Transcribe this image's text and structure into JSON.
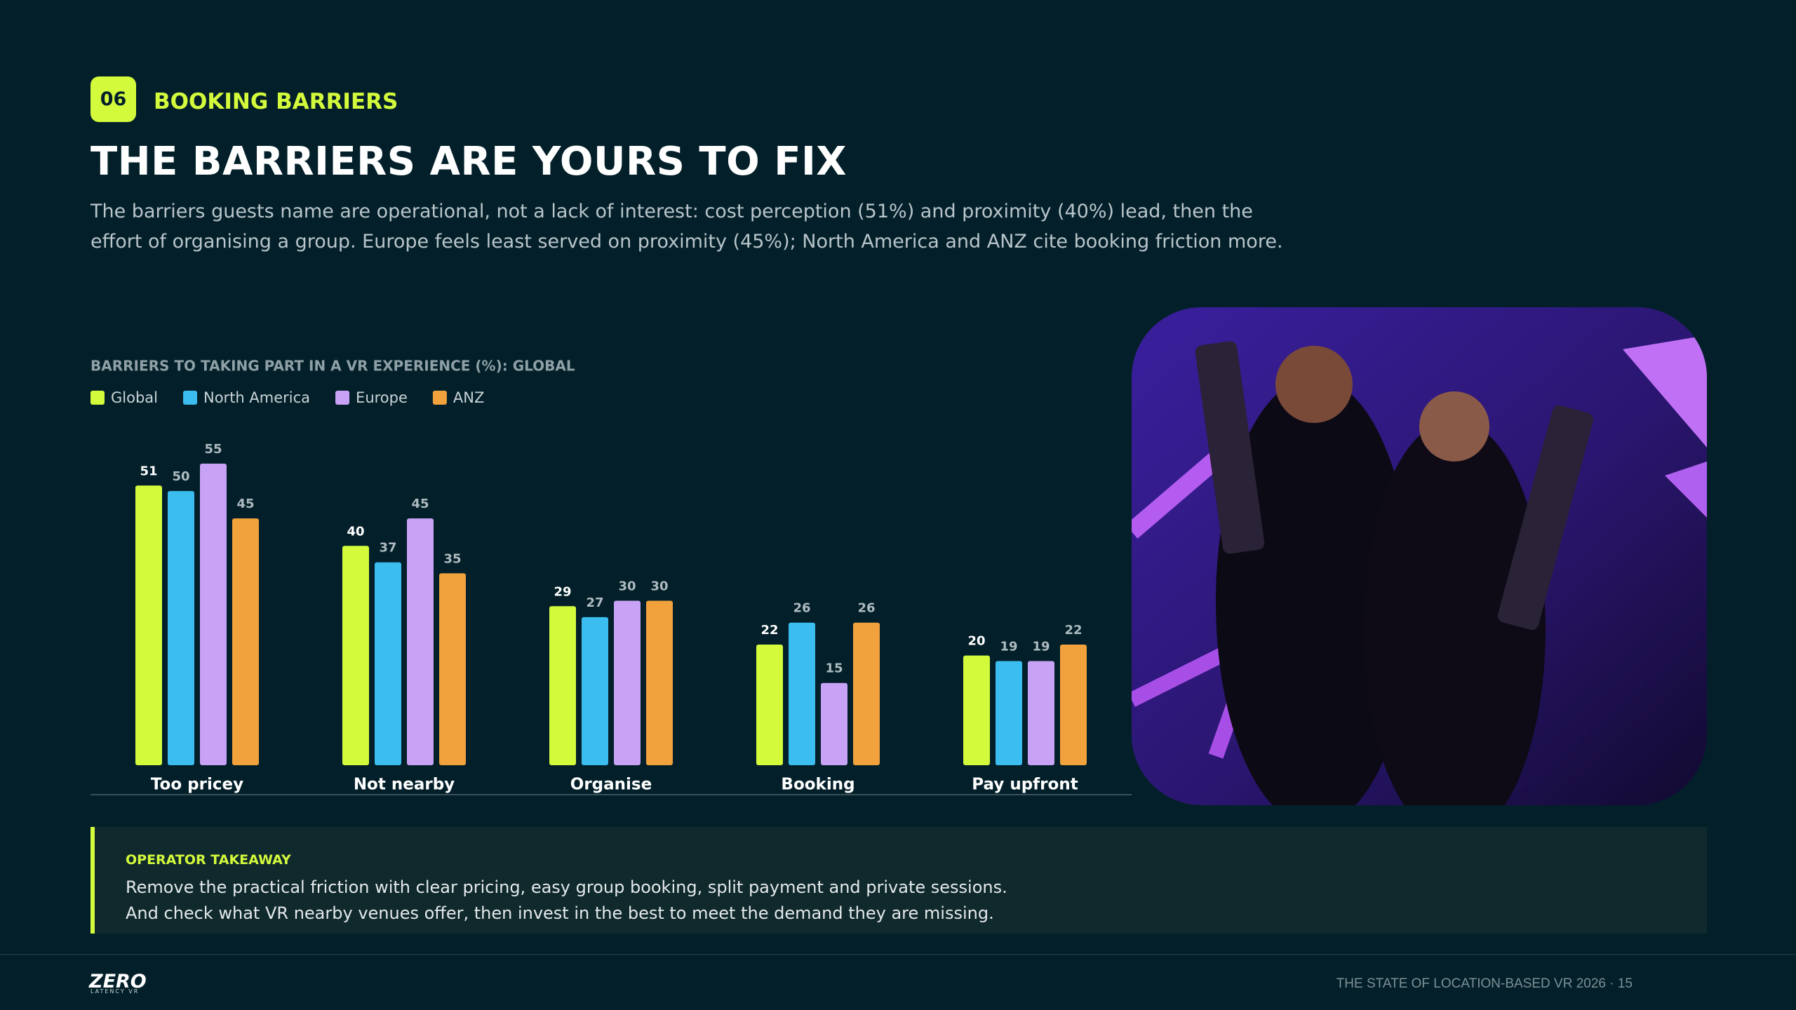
{
  "header": {
    "badge": "06",
    "section": "BOOKING BARRIERS",
    "title": "THE BARRIERS ARE YOURS TO FIX",
    "description": "The barriers guests name are operational, not a lack of interest: cost perception (51%) and proximity (40%) lead, then the effort of organising a group. Europe feels least served on proximity (45%); North America and ANZ cite booking friction more."
  },
  "chart_data": {
    "type": "bar",
    "title": "BARRIERS TO TAKING PART IN A VR EXPERIENCE (%): GLOBAL",
    "categories": [
      "Too pricey",
      "Not nearby",
      "Organise",
      "Booking",
      "Pay upfront"
    ],
    "series": [
      {
        "name": "Global",
        "color": "#d4fa3c",
        "values": [
          51,
          40,
          29,
          22,
          20
        ]
      },
      {
        "name": "North America",
        "color": "#3bbdf0",
        "values": [
          50,
          37,
          27,
          26,
          19
        ]
      },
      {
        "name": "Europe",
        "color": "#c8a2f5",
        "values": [
          55,
          45,
          30,
          15,
          19
        ]
      },
      {
        "name": "ANZ",
        "color": "#f2a23c",
        "values": [
          45,
          35,
          30,
          26,
          22
        ]
      }
    ],
    "ylim": [
      0,
      55
    ]
  },
  "takeaway": {
    "label": "OPERATOR TAKEAWAY",
    "lines": [
      "Remove the practical friction with clear pricing, easy group booking, split payment and private sessions.",
      "And check what VR nearby venues offer, then invest in the best to meet the demand they are missing."
    ]
  },
  "footer": {
    "logo": "ZERO",
    "logo_sub": "LATENCY VR",
    "text": "THE STATE OF LOCATION-BASED VR 2026 · 15"
  }
}
